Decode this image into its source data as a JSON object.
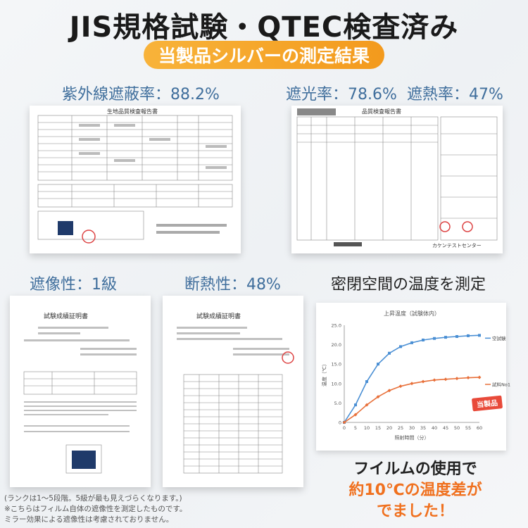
{
  "header": {
    "title": "JIS規格試験・QTEC検査済み",
    "subtitle": "当製品シルバーの測定結果"
  },
  "labels": {
    "uv_cut": "紫外線遮蔽率：88.2%",
    "light_block": "遮光率：78.6%",
    "heat_block": "遮熱率：47%",
    "privacy": "遮像性：1級",
    "insulation": "断熱性：48%",
    "closed_space": "密閉空間の温度を測定"
  },
  "documents": {
    "doc1_title": "生地品質検査報告書",
    "doc2_title": "品質検査報告書",
    "doc3_title": "試験成績証明書",
    "doc4_title": "試験成績証明書",
    "doc2_company": "カケンテストセンター"
  },
  "notes": {
    "line1": "(ランクは1〜5段階。5級が最も見えづらくなります。)",
    "line2": "※こちらはフィルム自体の遮像性を測定したものです。",
    "line3": "ミラー効果による遮像性は考慮されておりません。"
  },
  "bottom": {
    "line1": "フイルムの使用で",
    "line2": "約10℃の温度差が",
    "line3": "でました！"
  },
  "colors": {
    "accent_blue": "#3f6e9c",
    "accent_orange": "#f39a1d",
    "series_blank": "#4a8fd4",
    "series_sample": "#e8703a"
  },
  "chart_data": {
    "type": "line",
    "title": "上昇温度（試験体内）",
    "xlabel": "照射時間（分）",
    "ylabel": "温度（℃）",
    "x": [
      0,
      5,
      10,
      15,
      20,
      25,
      30,
      35,
      40,
      45,
      50,
      55,
      60
    ],
    "xlim": [
      0,
      60
    ],
    "ylim": [
      0,
      25
    ],
    "yticks": [
      0,
      5.0,
      10.0,
      15.0,
      20.0,
      25.0
    ],
    "ytick_labels": [
      "0",
      "5.0",
      "10.0",
      "15.0",
      "20.0",
      "25.0"
    ],
    "xtick_labels": [
      "0",
      "5",
      "10",
      "15",
      "20",
      "25",
      "30",
      "35",
      "40",
      "45",
      "50",
      "55",
      "60"
    ],
    "series": [
      {
        "name": "空試験",
        "values": [
          0,
          4.5,
          10.5,
          15.0,
          17.8,
          19.5,
          20.5,
          21.2,
          21.6,
          21.9,
          22.1,
          22.3,
          22.4
        ]
      },
      {
        "name": "試料No1",
        "values": [
          0,
          2.0,
          4.5,
          6.6,
          8.2,
          9.3,
          10.0,
          10.5,
          10.9,
          11.1,
          11.3,
          11.5,
          11.6
        ]
      }
    ],
    "badge": "当製品"
  }
}
